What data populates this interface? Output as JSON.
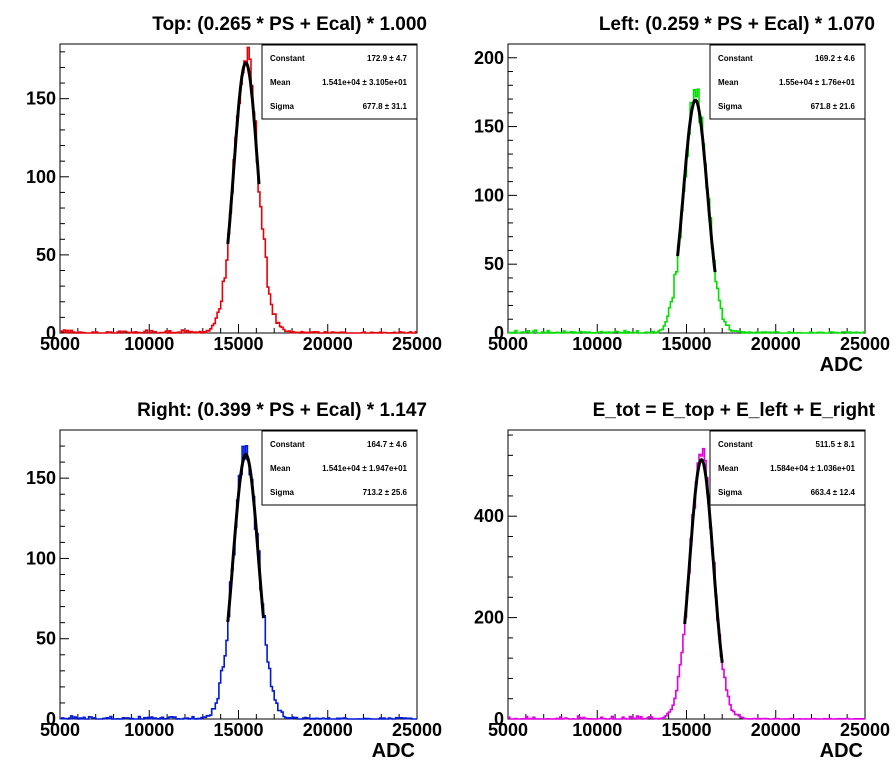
{
  "chart_data": [
    {
      "type": "histogram",
      "title": "Top: (0.265 * PS + Ecal) * 1.000",
      "xlabel": "",
      "ylabel": "",
      "xlim": [
        5000,
        25000
      ],
      "ylim": [
        0,
        185
      ],
      "x_ticks": [
        "5000",
        "10000",
        "15000",
        "20000",
        "25000"
      ],
      "y_ticks": [
        0,
        50,
        100,
        150
      ],
      "y_tick_labels": [
        "0",
        "50",
        "100",
        "150"
      ],
      "color": "#e8000b",
      "fit": {
        "constant": 172.9,
        "mean": 15410,
        "sigma": 677.8,
        "range": [
          14400,
          16150
        ]
      },
      "stats": [
        {
          "name": "Constant",
          "value": "172.9 ± 4.7"
        },
        {
          "name": "Mean",
          "value": "1.541e+04 ± 3.105e+01"
        },
        {
          "name": "Sigma",
          "value": "677.8 ± 31.1"
        }
      ]
    },
    {
      "type": "histogram",
      "title": "Left: (0.259 * PS + Ecal) * 1.070",
      "xlabel": "ADC",
      "ylabel": "",
      "xlim": [
        5000,
        25000
      ],
      "ylim": [
        0,
        210
      ],
      "x_ticks": [
        "5000",
        "10000",
        "15000",
        "20000",
        "25000"
      ],
      "y_ticks": [
        0,
        50,
        100,
        150,
        200
      ],
      "y_tick_labels": [
        "0",
        "50",
        "100",
        "150",
        "200"
      ],
      "color": "#00e000",
      "fit": {
        "constant": 169.2,
        "mean": 15500,
        "sigma": 671.8,
        "range": [
          14500,
          16600
        ]
      },
      "stats": [
        {
          "name": "Constant",
          "value": "169.2 ± 4.6"
        },
        {
          "name": "Mean",
          "value": "1.55e+04 ± 1.76e+01"
        },
        {
          "name": "Sigma",
          "value": "671.8 ± 21.6"
        }
      ]
    },
    {
      "type": "histogram",
      "title": "Right: (0.399 * PS + Ecal) * 1.147",
      "xlabel": "ADC",
      "ylabel": "",
      "xlim": [
        5000,
        25000
      ],
      "ylim": [
        0,
        180
      ],
      "x_ticks": [
        "5000",
        "10000",
        "15000",
        "20000",
        "25000"
      ],
      "y_ticks": [
        0,
        50,
        100,
        150
      ],
      "y_tick_labels": [
        "0",
        "50",
        "100",
        "150"
      ],
      "color": "#0018d8",
      "fit": {
        "constant": 164.7,
        "mean": 15410,
        "sigma": 713.2,
        "range": [
          14400,
          16400
        ]
      },
      "stats": [
        {
          "name": "Constant",
          "value": "164.7 ± 4.6"
        },
        {
          "name": "Mean",
          "value": "1.541e+04 ± 1.947e+01"
        },
        {
          "name": "Sigma",
          "value": "713.2 ± 25.6"
        }
      ]
    },
    {
      "type": "histogram",
      "title": "E_tot = E_top + E_left + E_right",
      "xlabel": "ADC",
      "ylabel": "",
      "xlim": [
        5000,
        25000
      ],
      "ylim": [
        0,
        570
      ],
      "x_ticks": [
        "5000",
        "10000",
        "15000",
        "20000",
        "25000"
      ],
      "y_ticks": [
        0,
        200,
        400
      ],
      "y_tick_labels": [
        "0",
        "200",
        "400"
      ],
      "color": "#e000e0",
      "fit": {
        "constant": 511.5,
        "mean": 15840,
        "sigma": 663.4,
        "range": [
          14900,
          17000
        ]
      },
      "stats": [
        {
          "name": "Constant",
          "value": "511.5 ± 8.1"
        },
        {
          "name": "Mean",
          "value": "1.584e+04 ± 1.036e+01"
        },
        {
          "name": "Sigma",
          "value": "663.4 ± 12.4"
        }
      ]
    }
  ]
}
